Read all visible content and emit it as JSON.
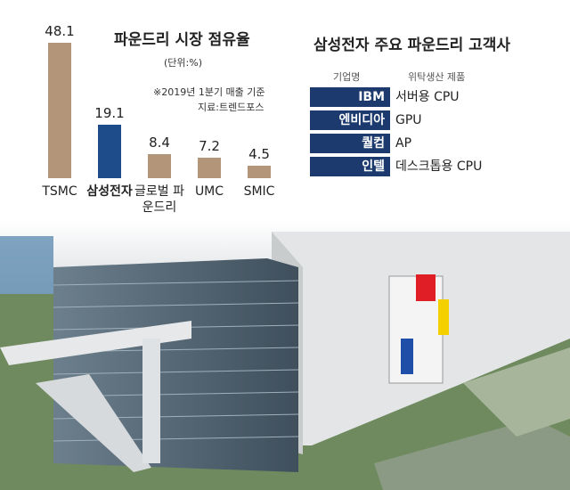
{
  "chart_data": {
    "type": "bar",
    "title": "파운드리 시장 점유율",
    "subtitle": "(단위:%)",
    "note": "※2019년 1분기 매출 기준",
    "source": "지료:트렌드포스",
    "categories": [
      "TSMC",
      "삼성전자",
      "글로벌 파운드리",
      "UMC",
      "SMIC"
    ],
    "values": [
      48.1,
      19.1,
      8.4,
      7.2,
      4.5
    ],
    "colors": [
      "#b3957a",
      "#1e4c8a",
      "#b3957a",
      "#b3957a",
      "#b3957a"
    ]
  },
  "table": {
    "title": "삼성전자 주요 파운드리 고객사",
    "headers": [
      "기업명",
      "위탁생산 제품"
    ],
    "rows": [
      [
        "IBM",
        "서버용 CPU"
      ],
      [
        "엔비디아",
        "GPU"
      ],
      [
        "퀄컴",
        "AP"
      ],
      [
        "인텔",
        "데스크톱용 CPU"
      ]
    ]
  }
}
